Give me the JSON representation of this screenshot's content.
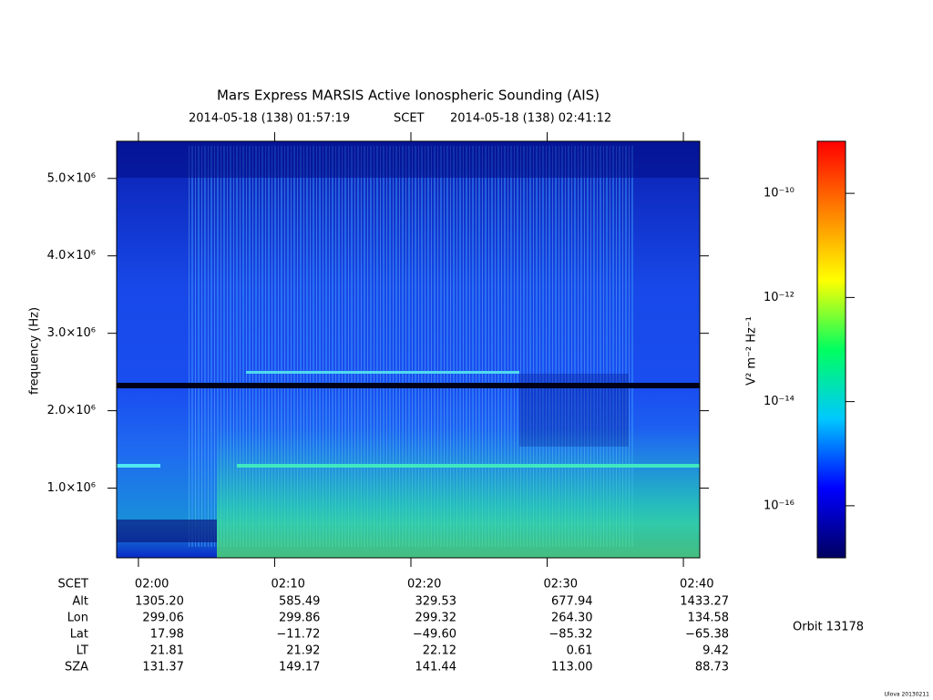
{
  "chart_data": {
    "type": "spectrogram",
    "title": "Mars Express MARSIS Active Ionospheric Sounding (AIS)",
    "start_time": "2014-05-18 (138) 01:57:19",
    "time_system": "SCET",
    "end_time": "2014-05-18 (138) 02:41:12",
    "y_label": "frequency (Hz)",
    "ylim": [
      100000,
      5480000
    ],
    "yticks": [
      {
        "value": 1000000,
        "label": "1.0×10⁶"
      },
      {
        "value": 2000000,
        "label": "2.0×10⁶"
      },
      {
        "value": 3000000,
        "label": "3.0×10⁶"
      },
      {
        "value": 4000000,
        "label": "4.0×10⁶"
      },
      {
        "value": 5000000,
        "label": "5.0×10⁶"
      }
    ],
    "xlim": [
      118.4,
      161.2
    ],
    "xticks": [
      {
        "value": 120,
        "label": "02:00"
      },
      {
        "value": 130,
        "label": "02:10"
      },
      {
        "value": 140,
        "label": "02:20"
      },
      {
        "value": 150,
        "label": "02:30"
      },
      {
        "value": 160,
        "label": "02:40"
      }
    ],
    "x_label": "SCET",
    "ephemeris": [
      {
        "label": "Alt",
        "values": [
          "1305.20",
          "585.49",
          "329.53",
          "677.94",
          "1433.27"
        ]
      },
      {
        "label": "Lon",
        "values": [
          "299.06",
          "299.86",
          "299.32",
          "264.30",
          "134.58"
        ]
      },
      {
        "label": "Lat",
        "values": [
          "17.98",
          "−11.72",
          "−49.60",
          "−85.32",
          "−65.38"
        ]
      },
      {
        "label": "LT",
        "values": [
          "21.81",
          "21.92",
          "22.12",
          "0.61",
          "9.42"
        ]
      },
      {
        "label": "SZA",
        "values": [
          "131.37",
          "149.17",
          "141.44",
          "113.00",
          "88.73"
        ]
      }
    ],
    "colorbar_label": "V² m⁻² Hz⁻¹",
    "colorbar_log": true,
    "clim": [
      1e-17,
      1e-09
    ],
    "cticks": [
      {
        "value": 1e-10,
        "label": "10⁻¹⁰"
      },
      {
        "value": 1e-12,
        "label": "10⁻¹²"
      },
      {
        "value": 1e-14,
        "label": "10⁻¹⁴"
      },
      {
        "value": 1e-16,
        "label": "10⁻¹⁶"
      }
    ],
    "colormap": [
      "#000060",
      "#0000ff",
      "#00c8ff",
      "#00ff60",
      "#ffff00",
      "#ff8000",
      "#ff0000"
    ],
    "orbit": "Orbit 13178",
    "footer": "Ulova 20130211"
  }
}
